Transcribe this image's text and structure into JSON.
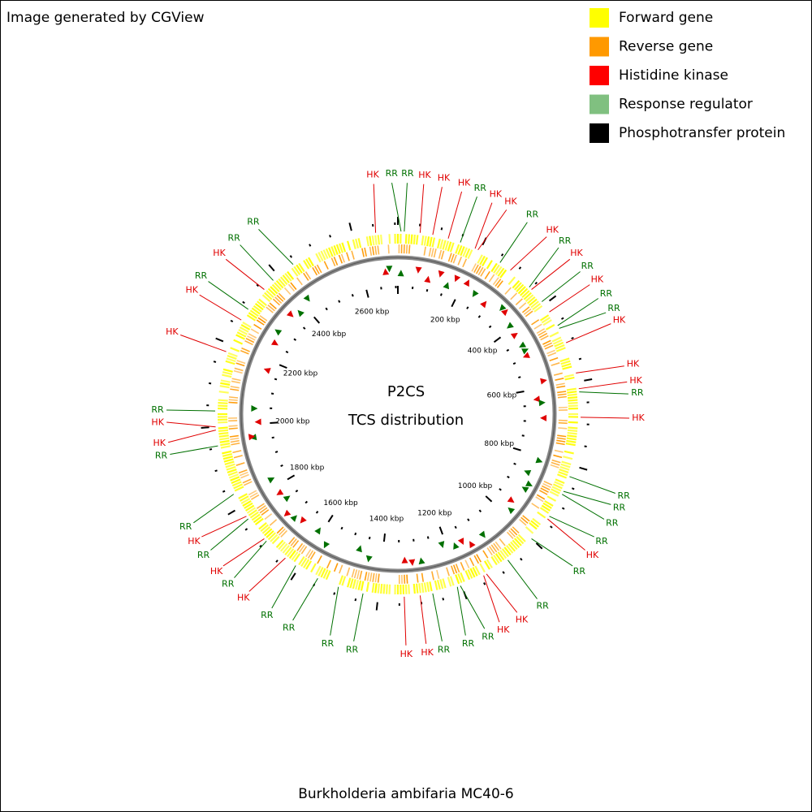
{
  "header": {
    "credit": "Image generated by CGView"
  },
  "legend": [
    {
      "label": "Forward gene",
      "color": "#ffff00"
    },
    {
      "label": "Reverse gene",
      "color": "#ff9900"
    },
    {
      "label": "Histidine kinase",
      "color": "#ff0000"
    },
    {
      "label": "Response regulator",
      "color": "#80c080"
    },
    {
      "label": "Phosphotransfer protein",
      "color": "#000000"
    }
  ],
  "map": {
    "title": "P2CS",
    "subtitle": "TCS distribution",
    "scale_labels": [
      "200 kbp",
      "400 kbp",
      "600 kbp",
      "800 kbp",
      "1000 kbp",
      "1200 kbp",
      "1400 kbp",
      "1600 kbp",
      "1800 kbp",
      "2000 kbp",
      "2200 kbp",
      "2400 kbp",
      "2600 kbp"
    ],
    "features": [
      {
        "text": "HK",
        "color": "#e00000"
      },
      {
        "text": "RR",
        "color": "#007000"
      },
      {
        "text": "RR",
        "color": "#007000"
      },
      {
        "text": "HK",
        "color": "#e00000"
      },
      {
        "text": "HK",
        "color": "#e00000"
      },
      {
        "text": "HK",
        "color": "#e00000"
      },
      {
        "text": "RR",
        "color": "#007000"
      },
      {
        "text": "HK",
        "color": "#e00000"
      },
      {
        "text": "HK",
        "color": "#e00000"
      },
      {
        "text": "RR",
        "color": "#007000"
      },
      {
        "text": "HK",
        "color": "#e00000"
      },
      {
        "text": "RR",
        "color": "#007000"
      },
      {
        "text": "HK",
        "color": "#e00000"
      },
      {
        "text": "RR",
        "color": "#007000"
      },
      {
        "text": "HK",
        "color": "#e00000"
      },
      {
        "text": "RR",
        "color": "#007000"
      },
      {
        "text": "RR",
        "color": "#007000"
      },
      {
        "text": "HK",
        "color": "#e00000"
      },
      {
        "text": "HK",
        "color": "#e00000"
      },
      {
        "text": "HK",
        "color": "#e00000"
      },
      {
        "text": "RR",
        "color": "#007000"
      },
      {
        "text": "HK",
        "color": "#e00000"
      },
      {
        "text": "RR",
        "color": "#007000"
      },
      {
        "text": "RR",
        "color": "#007000"
      },
      {
        "text": "RR",
        "color": "#007000"
      },
      {
        "text": "RR",
        "color": "#007000"
      },
      {
        "text": "HK",
        "color": "#e00000"
      },
      {
        "text": "RR",
        "color": "#007000"
      },
      {
        "text": "RR",
        "color": "#007000"
      },
      {
        "text": "HK",
        "color": "#e00000"
      },
      {
        "text": "HK",
        "color": "#e00000"
      },
      {
        "text": "RR",
        "color": "#007000"
      },
      {
        "text": "RR",
        "color": "#007000"
      },
      {
        "text": "RR",
        "color": "#007000"
      },
      {
        "text": "HK",
        "color": "#e00000"
      },
      {
        "text": "HK",
        "color": "#e00000"
      },
      {
        "text": "RR",
        "color": "#007000"
      },
      {
        "text": "RR",
        "color": "#007000"
      },
      {
        "text": "RR",
        "color": "#007000"
      },
      {
        "text": "RR",
        "color": "#007000"
      },
      {
        "text": "HK",
        "color": "#e00000"
      },
      {
        "text": "RR",
        "color": "#007000"
      },
      {
        "text": "HK",
        "color": "#e00000"
      },
      {
        "text": "RR",
        "color": "#007000"
      },
      {
        "text": "HK",
        "color": "#e00000"
      },
      {
        "text": "RR",
        "color": "#007000"
      },
      {
        "text": "RR",
        "color": "#007000"
      },
      {
        "text": "HK",
        "color": "#e00000"
      },
      {
        "text": "HK",
        "color": "#e00000"
      },
      {
        "text": "RR",
        "color": "#007000"
      },
      {
        "text": "HK",
        "color": "#e00000"
      },
      {
        "text": "HK",
        "color": "#e00000"
      },
      {
        "text": "RR",
        "color": "#007000"
      },
      {
        "text": "HK",
        "color": "#e00000"
      },
      {
        "text": "RR",
        "color": "#007000"
      },
      {
        "text": "RR",
        "color": "#007000"
      }
    ]
  },
  "footer": {
    "organism": "Burkholderia ambifaria MC40-6"
  }
}
